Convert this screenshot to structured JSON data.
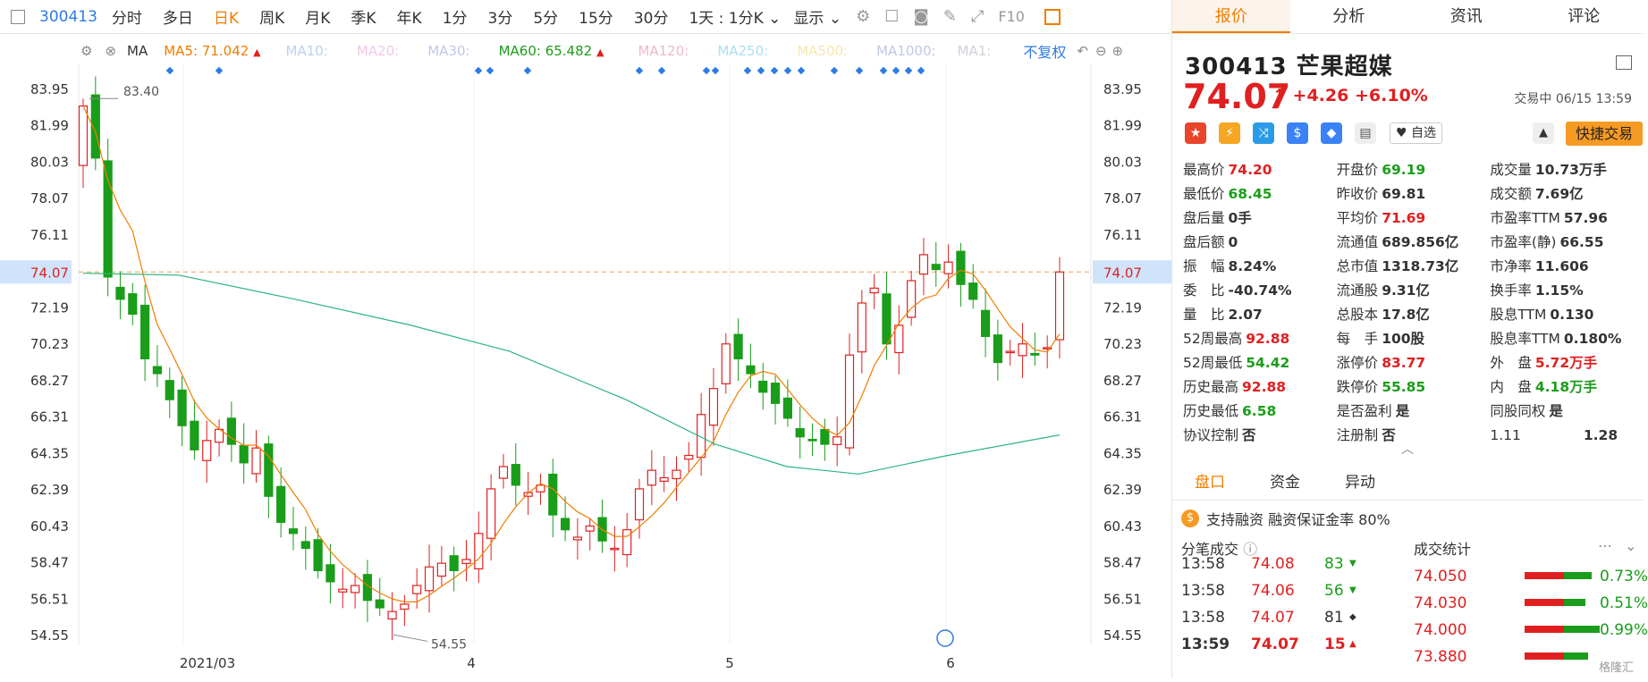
{
  "toolbar": {
    "code": "300413",
    "tabs": [
      "分时",
      "多日",
      "日K",
      "周K",
      "月K",
      "季K",
      "年K",
      "1分",
      "3分",
      "5分",
      "15分",
      "30分"
    ],
    "active_tab": "日K",
    "range_label": "1天 : 1分K",
    "display_label": "显示"
  },
  "ma_bar": {
    "ma": "MA",
    "ma5": "MA5: 71.042",
    "ma10": "MA10:",
    "ma20": "MA20:",
    "ma30": "MA30:",
    "ma60": "MA60: 65.482",
    "ma120": "MA120:",
    "ma250": "MA250:",
    "ma500": "MA500:",
    "ma1000": "MA1000:",
    "ma1": "MA1:",
    "fuquan": "不复权",
    "colors": {
      "ma5": "#f07d00",
      "ma60": "#1a9d1a",
      "faded": "#c0c8e8"
    }
  },
  "chart_data": {
    "type": "candlestick",
    "yticks": [
      "83.95",
      "81.99",
      "80.03",
      "78.07",
      "76.11",
      "74.07",
      "72.19",
      "70.23",
      "68.27",
      "66.31",
      "64.35",
      "62.39",
      "60.43",
      "58.47",
      "56.51",
      "54.55"
    ],
    "ylim": [
      53.5,
      85.0
    ],
    "xlabels": [
      "2021/03",
      "4",
      "5",
      "6"
    ],
    "current_price": "74.07",
    "high_label": "83.40",
    "low_label": "54.55",
    "colors": {
      "up": "#e02020",
      "down": "#1a9d1a",
      "ma5": "#f07d00",
      "ma60": "#2ab57d",
      "ref": "#f0a050"
    }
  },
  "stock": {
    "code": "300413",
    "name": "芒果超媒",
    "price": "74.07",
    "arrow": "↑",
    "change": "+4.26",
    "change_pct": "+6.10%",
    "status": "交易中 06/15 13:59",
    "zixuan": "自选",
    "quick_trade": "快捷交易"
  },
  "right_tabs": [
    "报价",
    "分析",
    "资讯",
    "评论"
  ],
  "quote": [
    [
      {
        "l": "最高价",
        "v": "74.20",
        "c": "red"
      },
      {
        "l": "开盘价",
        "v": "69.19",
        "c": "green"
      },
      {
        "l": "成交量",
        "v": "10.73万手",
        "c": "blk"
      }
    ],
    [
      {
        "l": "最低价",
        "v": "68.45",
        "c": "green"
      },
      {
        "l": "昨收价",
        "v": "69.81",
        "c": "blk"
      },
      {
        "l": "成交额",
        "v": "7.69亿",
        "c": "blk"
      }
    ],
    [
      {
        "l": "盘后量",
        "v": "0手",
        "c": "blk"
      },
      {
        "l": "平均价",
        "v": "71.69",
        "c": "red"
      },
      {
        "l": "市盈率TTM",
        "v": "57.96",
        "c": "blk"
      }
    ],
    [
      {
        "l": "盘后额",
        "v": "0",
        "c": "blk"
      },
      {
        "l": "流通值",
        "v": "689.856亿",
        "c": "blk"
      },
      {
        "l": "市盈率(静)",
        "v": "66.55",
        "c": "blk"
      }
    ],
    [
      {
        "l": "振　幅",
        "v": "8.24%",
        "c": "blk"
      },
      {
        "l": "总市值",
        "v": "1318.73亿",
        "c": "blk"
      },
      {
        "l": "市净率",
        "v": "11.606",
        "c": "blk"
      }
    ],
    [
      {
        "l": "委　比",
        "v": "-40.74%",
        "c": "blk"
      },
      {
        "l": "流通股",
        "v": "9.31亿",
        "c": "blk"
      },
      {
        "l": "换手率",
        "v": "1.15%",
        "c": "blk"
      }
    ],
    [
      {
        "l": "量　比",
        "v": "2.07",
        "c": "blk"
      },
      {
        "l": "总股本",
        "v": "17.8亿",
        "c": "blk"
      },
      {
        "l": "股息TTM",
        "v": "0.130",
        "c": "blk"
      }
    ],
    [
      {
        "l": "52周最高",
        "v": "92.88",
        "c": "red"
      },
      {
        "l": "每　手",
        "v": "100股",
        "c": "blk"
      },
      {
        "l": "股息率TTM",
        "v": "0.180%",
        "c": "blk"
      }
    ],
    [
      {
        "l": "52周最低",
        "v": "54.42",
        "c": "green"
      },
      {
        "l": "涨停价",
        "v": "83.77",
        "c": "red"
      },
      {
        "l": "外　盘",
        "v": "5.72万手",
        "c": "red"
      }
    ],
    [
      {
        "l": "历史最高",
        "v": "92.88",
        "c": "red"
      },
      {
        "l": "跌停价",
        "v": "55.85",
        "c": "green"
      },
      {
        "l": "内　盘",
        "v": "4.18万手",
        "c": "green"
      }
    ],
    [
      {
        "l": "历史最低",
        "v": "6.58",
        "c": "green"
      },
      {
        "l": "是否盈利",
        "v": "是",
        "c": "blk"
      },
      {
        "l": "同股同权",
        "v": "是",
        "c": "blk"
      }
    ],
    [
      {
        "l": "协议控制",
        "v": "否",
        "c": "blk"
      },
      {
        "l": "注册制",
        "v": "否",
        "c": "blk"
      },
      {
        "l": "1.11",
        "v": "1.28",
        "c": "blk"
      }
    ]
  ],
  "sect2_tabs": [
    "盘口",
    "资金",
    "异动"
  ],
  "rzrq": "支持融资 融资保证金率 80%",
  "ticks_header": "分笔成交",
  "stats_header": "成交统计",
  "ticks": [
    {
      "t": "13:58",
      "p": "74.08",
      "v": "83",
      "dir": "down"
    },
    {
      "t": "13:58",
      "p": "74.06",
      "v": "56",
      "dir": "down"
    },
    {
      "t": "13:58",
      "p": "74.07",
      "v": "81",
      "dir": "flat"
    },
    {
      "t": "13:59",
      "p": "74.07",
      "v": "15",
      "dir": "up"
    }
  ],
  "stats": [
    {
      "p": "74.050",
      "pct": "0.73%",
      "share": 0.73
    },
    {
      "p": "74.030",
      "pct": "0.51%",
      "share": 0.51
    },
    {
      "p": "74.000",
      "pct": "0.99%",
      "share": 0.99
    },
    {
      "p": "73.880",
      "pct": "",
      "share": 0.6
    }
  ],
  "watermark": "格隆汇"
}
